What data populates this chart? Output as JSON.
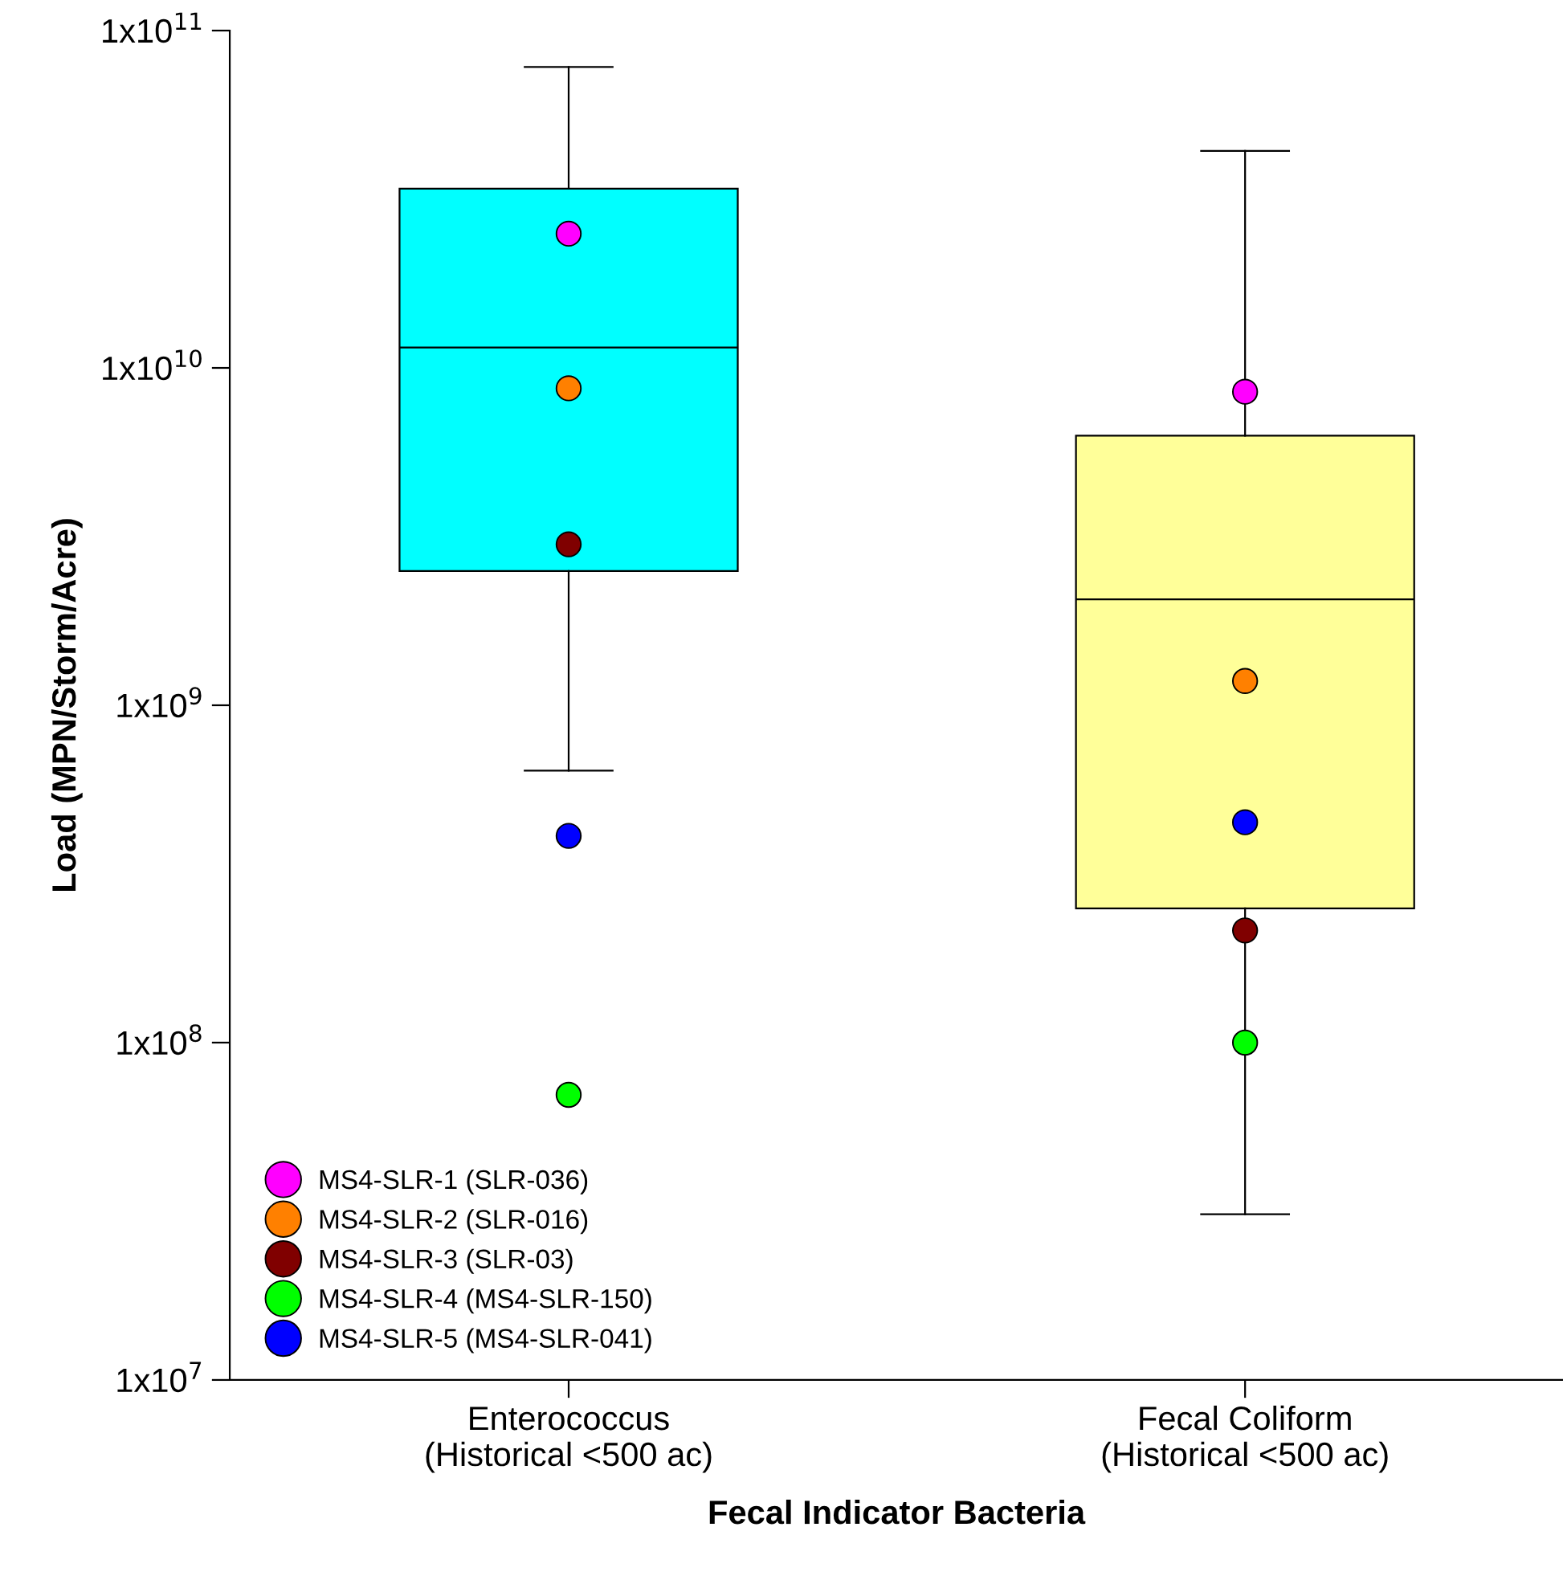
{
  "chart_data": {
    "type": "box",
    "xlabel": "Fecal Indicator Bacteria",
    "ylabel": "Load (MPN/Storm/Acre)",
    "categories": [
      "Enterococcus\n(Historical <500 ac)",
      "Fecal Coliform\n(Historical <500 ac)"
    ],
    "colors": [
      "#00ffff",
      "#ffff99"
    ],
    "boxes": [
      {
        "low": 640000000.0,
        "q1": 2500000000.0,
        "median": 11500000000.0,
        "q3": 34000000000.0,
        "high": 78000000000.0
      },
      {
        "low": 31000000.0,
        "q1": 250000000.0,
        "median": 2060000000.0,
        "q3": 6300000000.0,
        "high": 44000000000.0
      }
    ],
    "series": [
      {
        "name": "MS4-SLR-1 (SLR-036)",
        "type": "scatter",
        "color": "#ff00ff",
        "x": [
          "Enterococcus\n(Historical <500 ac)",
          "Fecal Coliform\n(Historical <500 ac)"
        ],
        "values": [
          25000000000.0,
          8500000000.0
        ]
      },
      {
        "name": "MS4-SLR-2 (SLR-016)",
        "type": "scatter",
        "color": "#ff8000",
        "x": [
          "Enterococcus\n(Historical <500 ac)",
          "Fecal Coliform\n(Historical <500 ac)"
        ],
        "values": [
          8700000000.0,
          1180000000.0
        ]
      },
      {
        "name": "MS4-SLR-3 (SLR-03)",
        "type": "scatter",
        "color": "#800000",
        "x": [
          "Enterococcus\n(Historical <500 ac)",
          "Fecal Coliform\n(Historical <500 ac)"
        ],
        "values": [
          3000000000.0,
          215000000.0
        ]
      },
      {
        "name": "MS4-SLR-4 (MS4-SLR-150)",
        "type": "scatter",
        "color": "#00ff00",
        "x": [
          "Enterococcus\n(Historical <500 ac)",
          "Fecal Coliform\n(Historical <500 ac)"
        ],
        "values": [
          70000000.0,
          100000000.0
        ]
      },
      {
        "name": "MS4-SLR-5 (MS4-SLR-041)",
        "type": "scatter",
        "color": "#0000ff",
        "x": [
          "Enterococcus\n(Historical <500 ac)",
          "Fecal Coliform\n(Historical <500 ac)"
        ],
        "values": [
          410000000.0,
          450000000.0
        ]
      }
    ],
    "log": true,
    "ylim": [
      10000000.0,
      100000000000.0
    ],
    "yticks": [
      {
        "value": 10000000.0,
        "label": "1x10$^{7}$"
      },
      {
        "value": 100000000.0,
        "label": "1x10$^{8}$"
      },
      {
        "value": 1000000000.0,
        "label": "1x10$^{9}$"
      },
      {
        "value": 10000000000.0,
        "label": "1x10$^{10}$"
      },
      {
        "value": 100000000000.0,
        "label": "1x10$^{11}$"
      }
    ],
    "marker": "circle",
    "grid": false,
    "legend": "bottom left"
  }
}
